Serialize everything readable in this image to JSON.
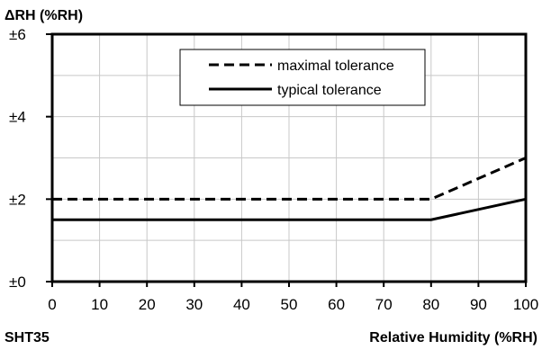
{
  "chart_data": {
    "type": "line",
    "ylabel": "ΔRH (%RH)",
    "xlabel": "Relative Humidity (%RH)",
    "footer_label": "SHT35",
    "xlim": [
      0,
      100
    ],
    "ylim": [
      0,
      6
    ],
    "x_ticks": [
      0,
      10,
      20,
      30,
      40,
      50,
      60,
      70,
      80,
      90,
      100
    ],
    "x_tick_labels": [
      "0",
      "10",
      "20",
      "30",
      "40",
      "50",
      "60",
      "70",
      "80",
      "90",
      "100"
    ],
    "y_ticks": [
      0,
      2,
      4,
      6
    ],
    "y_tick_labels": [
      "±0",
      "±2",
      "±4",
      "±6"
    ],
    "grid": true,
    "legend_position": "top-right",
    "series": [
      {
        "name": "maximal tolerance",
        "style": "dashed",
        "x": [
          0,
          80,
          100
        ],
        "y": [
          2,
          2,
          3
        ]
      },
      {
        "name": "typical tolerance",
        "style": "solid",
        "x": [
          0,
          80,
          100
        ],
        "y": [
          1.5,
          1.5,
          2
        ]
      }
    ]
  }
}
